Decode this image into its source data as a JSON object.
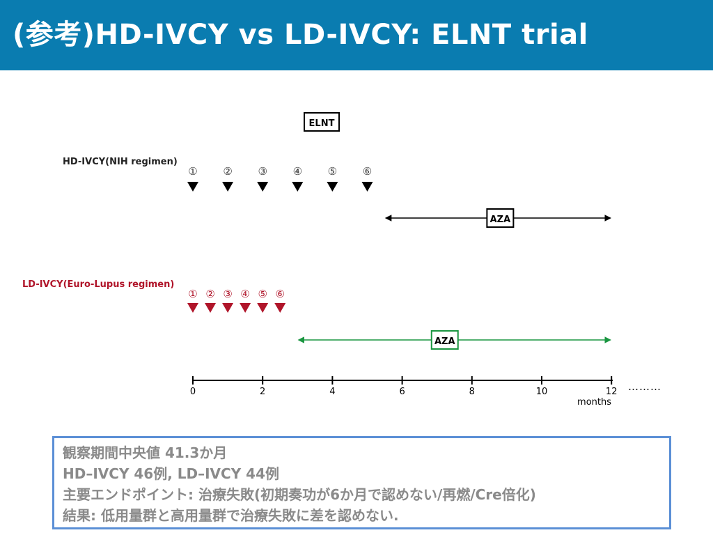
{
  "title": "(参考)HD-IVCY vs LD-IVCY: ELNT trial",
  "diagram": {
    "study_label": "ELNT",
    "hd": {
      "label": "HD-IVCY(NIH regimen)",
      "doses": [
        "①",
        "②",
        "③",
        "④",
        "⑤",
        "⑥"
      ],
      "dose_months": [
        0,
        1,
        2,
        3,
        4,
        5
      ],
      "maintenance": {
        "label": "AZA",
        "start_month": 5.5,
        "end_month": 12
      },
      "color": "#000000"
    },
    "ld": {
      "label": "LD-IVCY(Euro-Lupus regimen)",
      "doses": [
        "①",
        "②",
        "③",
        "④",
        "⑤",
        "⑥"
      ],
      "dose_months": [
        0,
        0.5,
        1,
        1.5,
        2,
        2.5
      ],
      "maintenance": {
        "label": "AZA",
        "start_month": 3,
        "end_month": 12
      },
      "color": "#b0152a",
      "maintenance_color": "#1a9641"
    },
    "axis": {
      "ticks": [
        "0",
        "2",
        "4",
        "6",
        "8",
        "10",
        "12"
      ],
      "tick_values": [
        0,
        2,
        4,
        6,
        8,
        10,
        12
      ],
      "unit_label": "months",
      "continuation": "………"
    }
  },
  "notes": {
    "line1": "観察期間中央値 41.3か月",
    "line2": "HD–IVCY 46例, LD–IVCY 44例",
    "line3": "主要エンドポイント: 治療失敗(初期奏功が6か月で認めない/再燃/Cre倍化)",
    "line4": "結果: 低用量群と高用量群で治療失敗に差を認めない."
  }
}
